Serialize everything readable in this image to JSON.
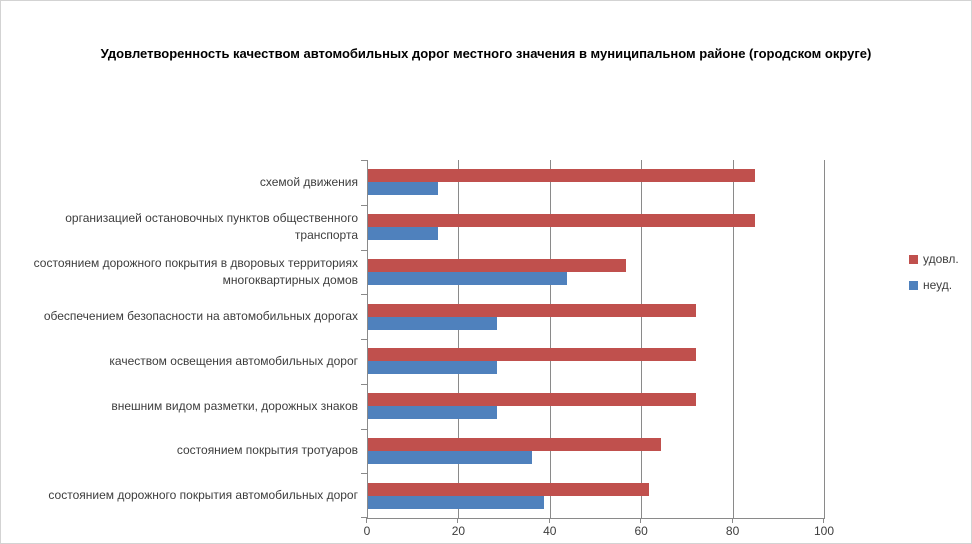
{
  "window": {
    "background": "#ffffff",
    "border_color": "#d3d3d3"
  },
  "colors": {
    "series_satisfied": "#C0504D",
    "series_unsatisfied": "#4F81BD",
    "axis_line": "#8a8a8a",
    "gridline": "#8a8a8a",
    "text": "#3d3d3d",
    "title_text": "#000000"
  },
  "chart_data": {
    "type": "bar",
    "orientation": "horizontal",
    "title": "Удовлетворенность качеством автомобильных дорог местного значения в муниципальном районе (городском округе)",
    "categories": [
      "схемой движения",
      "организацией остановочных пунктов общественного транспорта",
      "состоянием дорожного покрытия в дворовых территориях многоквартирных домов",
      "обеспечением  безопасности на автомобильных дорогах",
      "качеством освещения  автомобильных дорог",
      "внешним  видом разметки, дорожных знаков",
      "состоянием покрытия тротуаров",
      "состоянием дорожного покрытия автомобильных дорог"
    ],
    "series": [
      {
        "name": "удовл.",
        "color": "#C0504D",
        "values": [
          84.6,
          84.6,
          56.4,
          71.8,
          71.8,
          71.8,
          64.1,
          61.5
        ]
      },
      {
        "name": "неуд.",
        "color": "#4F81BD",
        "values": [
          15.4,
          15.4,
          43.6,
          28.2,
          28.2,
          28.2,
          35.9,
          38.5
        ]
      }
    ],
    "x_axis": {
      "min": 0,
      "max": 100,
      "ticks": [
        0,
        20,
        40,
        60,
        80,
        100
      ]
    },
    "y_axis_label": "",
    "x_axis_label": "",
    "grid": true,
    "legend_position": "right",
    "data_labels": false
  }
}
